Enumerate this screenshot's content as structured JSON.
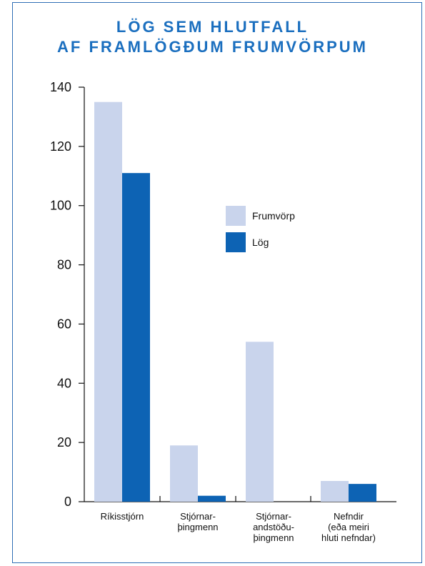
{
  "chart_data": {
    "type": "bar",
    "title": [
      "LÖG SEM HLUTFALL",
      "AF FRAMLÖGÐUM FRUMVÖRPUM"
    ],
    "categories": [
      [
        "Ríkisstjórn"
      ],
      [
        "Stjórnar-",
        "þingmenn"
      ],
      [
        "Stjórnar-",
        "andstöðu-",
        "þingmenn"
      ],
      [
        "Nefndir",
        "(eða meiri",
        "hluti nefndar)"
      ]
    ],
    "series": [
      {
        "name": "Frumvörp",
        "values": [
          135,
          19,
          54,
          7
        ],
        "color": "#c9d4ec"
      },
      {
        "name": "Lög",
        "values": [
          111,
          2,
          0,
          6
        ],
        "color": "#0d63b4"
      }
    ],
    "yticks": [
      0,
      20,
      40,
      60,
      80,
      100,
      120,
      140
    ],
    "ylim": [
      0,
      140
    ],
    "grid": false,
    "legend_position": "center-right",
    "title_color": "#1b6fbf",
    "border_color": "#2f6fb5"
  }
}
